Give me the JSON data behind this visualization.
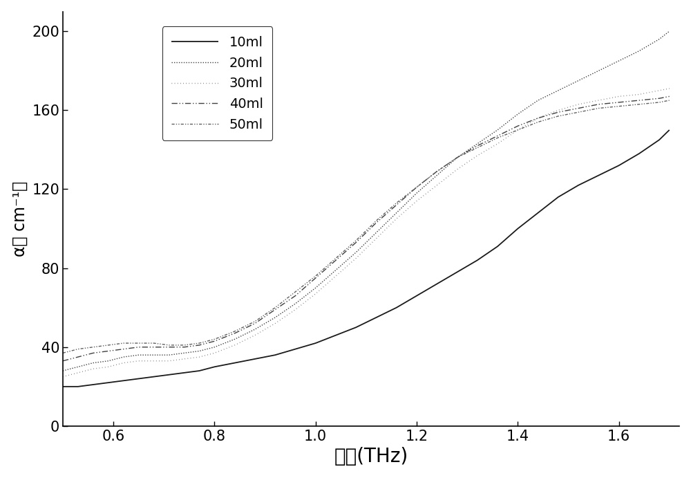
{
  "title": "",
  "xlabel": "频率(THz)",
  "ylabel": "α（ cm⁻¹）",
  "xlim": [
    0.5,
    1.72
  ],
  "ylim": [
    0,
    210
  ],
  "xticks": [
    0.6,
    0.8,
    1.0,
    1.2,
    1.4,
    1.6
  ],
  "yticks": [
    0,
    40,
    80,
    120,
    160,
    200
  ],
  "xlabel_fontsize": 20,
  "ylabel_fontsize": 17,
  "tick_fontsize": 15,
  "legend_labels": [
    "10ml",
    "20ml",
    "30ml",
    "40ml",
    "50ml"
  ],
  "linestyles": [
    "solid",
    "densely_dotted",
    "fine_dotted",
    "dash_dot_dot",
    "loose_dash_dot"
  ],
  "linewidths": [
    1.3,
    1.0,
    1.0,
    1.0,
    1.0
  ],
  "linecolors": [
    "#1a1a1a",
    "#404040",
    "#606060",
    "#404040",
    "#606060"
  ],
  "background_color": "#ffffff",
  "series": {
    "10ml": {
      "x": [
        0.5,
        0.53,
        0.56,
        0.59,
        0.62,
        0.65,
        0.68,
        0.71,
        0.74,
        0.77,
        0.8,
        0.84,
        0.88,
        0.92,
        0.96,
        1.0,
        1.04,
        1.08,
        1.12,
        1.16,
        1.2,
        1.24,
        1.28,
        1.32,
        1.36,
        1.4,
        1.44,
        1.48,
        1.52,
        1.56,
        1.6,
        1.64,
        1.68,
        1.7
      ],
      "y": [
        20,
        20,
        21,
        22,
        23,
        24,
        25,
        26,
        27,
        28,
        30,
        32,
        34,
        36,
        39,
        42,
        46,
        50,
        55,
        60,
        66,
        72,
        78,
        84,
        91,
        100,
        108,
        116,
        122,
        127,
        132,
        138,
        145,
        150
      ]
    },
    "20ml": {
      "x": [
        0.5,
        0.53,
        0.56,
        0.59,
        0.62,
        0.65,
        0.68,
        0.71,
        0.74,
        0.77,
        0.8,
        0.84,
        0.88,
        0.92,
        0.96,
        1.0,
        1.04,
        1.08,
        1.12,
        1.16,
        1.2,
        1.24,
        1.28,
        1.32,
        1.36,
        1.4,
        1.44,
        1.48,
        1.52,
        1.56,
        1.6,
        1.64,
        1.68,
        1.7
      ],
      "y": [
        28,
        30,
        32,
        33,
        35,
        36,
        36,
        36,
        37,
        38,
        40,
        44,
        49,
        55,
        62,
        70,
        79,
        88,
        98,
        108,
        118,
        127,
        136,
        143,
        150,
        158,
        165,
        170,
        175,
        180,
        185,
        190,
        196,
        200
      ]
    },
    "30ml": {
      "x": [
        0.5,
        0.53,
        0.56,
        0.59,
        0.62,
        0.65,
        0.68,
        0.71,
        0.74,
        0.77,
        0.8,
        0.84,
        0.88,
        0.92,
        0.96,
        1.0,
        1.04,
        1.08,
        1.12,
        1.16,
        1.2,
        1.24,
        1.28,
        1.32,
        1.36,
        1.4,
        1.44,
        1.48,
        1.52,
        1.56,
        1.6,
        1.64,
        1.68,
        1.7
      ],
      "y": [
        25,
        27,
        29,
        30,
        32,
        33,
        33,
        33,
        34,
        35,
        37,
        41,
        46,
        52,
        59,
        67,
        76,
        85,
        95,
        105,
        114,
        122,
        130,
        137,
        143,
        150,
        156,
        160,
        163,
        165,
        167,
        168,
        170,
        171
      ]
    },
    "40ml": {
      "x": [
        0.5,
        0.53,
        0.56,
        0.59,
        0.62,
        0.65,
        0.68,
        0.71,
        0.74,
        0.77,
        0.8,
        0.84,
        0.88,
        0.92,
        0.96,
        1.0,
        1.04,
        1.08,
        1.12,
        1.16,
        1.2,
        1.24,
        1.28,
        1.32,
        1.36,
        1.4,
        1.44,
        1.48,
        1.52,
        1.56,
        1.6,
        1.64,
        1.68,
        1.7
      ],
      "y": [
        33,
        35,
        37,
        38,
        39,
        40,
        40,
        40,
        40,
        41,
        43,
        47,
        52,
        59,
        66,
        75,
        84,
        93,
        103,
        112,
        121,
        129,
        136,
        142,
        147,
        152,
        156,
        159,
        161,
        163,
        164,
        165,
        166,
        167
      ]
    },
    "50ml": {
      "x": [
        0.5,
        0.53,
        0.56,
        0.59,
        0.62,
        0.65,
        0.68,
        0.71,
        0.74,
        0.77,
        0.8,
        0.84,
        0.88,
        0.92,
        0.96,
        1.0,
        1.04,
        1.08,
        1.12,
        1.16,
        1.2,
        1.24,
        1.28,
        1.32,
        1.36,
        1.4,
        1.44,
        1.48,
        1.52,
        1.56,
        1.6,
        1.64,
        1.68,
        1.7
      ],
      "y": [
        37,
        39,
        40,
        41,
        42,
        42,
        42,
        41,
        41,
        42,
        44,
        48,
        53,
        60,
        68,
        76,
        85,
        94,
        104,
        113,
        121,
        129,
        136,
        141,
        146,
        150,
        154,
        157,
        159,
        161,
        162,
        163,
        164,
        165
      ]
    }
  }
}
